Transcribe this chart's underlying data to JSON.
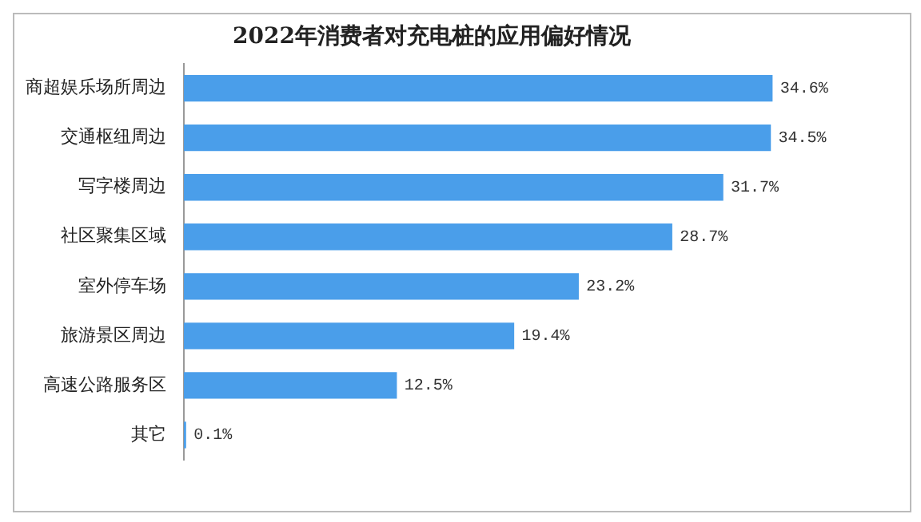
{
  "chart_data": {
    "type": "bar",
    "orientation": "horizontal",
    "title": "2022年消费者对充电桩的应用偏好情况",
    "categories": [
      "商超娱乐场所周边",
      "交通枢纽周边",
      "写字楼周边",
      "社区聚集区域",
      "室外停车场",
      "旅游景区周边",
      "高速公路服务区",
      "其它"
    ],
    "values": [
      34.6,
      34.5,
      31.7,
      28.7,
      23.2,
      19.4,
      12.5,
      0.1
    ],
    "value_labels": [
      "34.6%",
      "34.5%",
      "31.7%",
      "28.7%",
      "23.2%",
      "19.4%",
      "12.5%",
      "0.1%"
    ],
    "color": "#4a9eea"
  }
}
